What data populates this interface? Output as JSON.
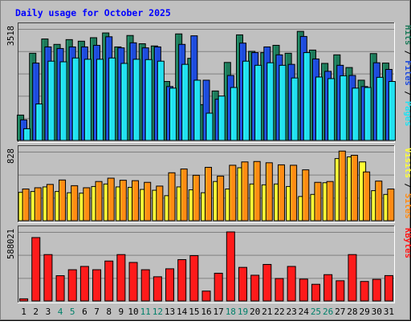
{
  "chart_data": {
    "type": "bar",
    "title": "Daily usage for October 2025",
    "categories": [
      "1",
      "2",
      "3",
      "4",
      "5",
      "6",
      "7",
      "8",
      "9",
      "10",
      "11",
      "12",
      "13",
      "14",
      "15",
      "16",
      "17",
      "18",
      "19",
      "20",
      "21",
      "22",
      "23",
      "24",
      "25",
      "26",
      "27",
      "28",
      "29",
      "30",
      "31"
    ],
    "weekend_days": [
      "4",
      "5",
      "11",
      "12",
      "18",
      "19",
      "25",
      "26"
    ],
    "panels": [
      {
        "id": "hits",
        "max_label": "3518",
        "max": 3518,
        "side_labels": [
          "Hits",
          "Files",
          "Pages"
        ],
        "series": [
          {
            "name": "Hits",
            "color": "#1e7a5a",
            "values": [
              800,
              2750,
              3200,
              3030,
              3180,
              3130,
              3240,
              3390,
              2950,
              3310,
              3050,
              2980,
              1860,
              3360,
              2590,
              1130,
              1560,
              2460,
              3330,
              2810,
              2770,
              3000,
              2750,
              3440,
              2850,
              2430,
              2700,
              2300,
              1900,
              2740,
              2440
            ]
          },
          {
            "name": "Files",
            "color": "#1e4bdc",
            "values": [
              650,
              2440,
              2950,
              2900,
              2950,
              2950,
              3000,
              3270,
              2920,
              3080,
              2920,
              2950,
              1700,
              3030,
              3300,
              1900,
              1300,
              2050,
              3070,
              2770,
              2950,
              2700,
              2400,
              3280,
              2570,
              2180,
              2370,
              2050,
              1700,
              2450,
              2240
            ]
          },
          {
            "name": "Pages",
            "color": "#22e0f0",
            "values": [
              370,
              1150,
              2500,
              2480,
              2600,
              2560,
              2560,
              2600,
              2430,
              2560,
              2550,
              2500,
              1650,
              2400,
              1900,
              860,
              1400,
              1670,
              2500,
              2370,
              2450,
              2370,
              1970,
              2770,
              2000,
              1950,
              2040,
              1650,
              1670,
              1990,
              1860
            ]
          }
        ]
      },
      {
        "id": "visits",
        "max_label": "828",
        "max": 828,
        "side_labels": [
          "Visits",
          "Sites"
        ],
        "series": [
          {
            "name": "Visits",
            "color": "#ffff33",
            "values": [
              340,
              350,
              405,
              350,
              335,
              330,
              410,
              440,
              405,
              400,
              375,
              365,
              300,
              405,
              370,
              335,
              470,
              380,
              635,
              440,
              430,
              440,
              410,
              290,
              315,
              455,
              745,
              765,
              705,
              360,
              315
            ]
          },
          {
            "name": "Sites",
            "color": "#ff8c14",
            "values": [
              380,
              395,
              435,
              488,
              420,
              395,
              470,
              510,
              485,
              480,
              460,
              415,
              575,
              620,
              545,
              640,
              535,
              665,
              705,
              710,
              695,
              670,
              665,
              610,
              460,
              470,
              835,
              785,
              585,
              475,
              380
            ]
          }
        ]
      },
      {
        "id": "kbytes",
        "max_label": "588021",
        "max": 588021,
        "side_labels": [
          "KBytes"
        ],
        "series": [
          {
            "name": "KBytes",
            "color": "#ff1a1a",
            "values": [
              18000,
              540000,
              395000,
              215000,
              266000,
              294000,
              266000,
              340000,
              395000,
              328000,
              266000,
              206000,
              274000,
              352000,
              386000,
              84000,
              236000,
              588021,
              286000,
              219000,
              311000,
              191000,
              294000,
              186000,
              142000,
              224000,
              172000,
              395000,
              166000,
              184000,
              216000
            ]
          }
        ]
      }
    ],
    "colors": {
      "background": "#c0c0c0",
      "page_background": "#ffffff",
      "frame": "#808080",
      "title": "#0000ff",
      "day_label": "#000000",
      "weekend_day_label": "#00806a",
      "gridline": "#808080"
    },
    "grid": true
  }
}
